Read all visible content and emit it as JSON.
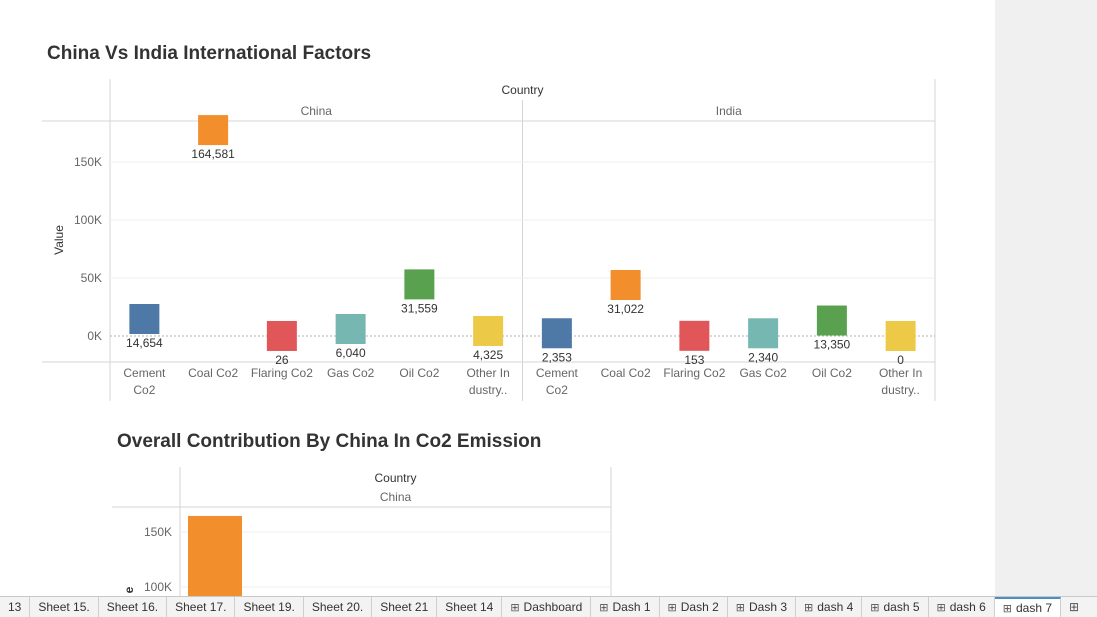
{
  "chart_data": [
    {
      "type": "bar",
      "title": "China Vs India International Factors",
      "header": "Country",
      "ylabel": "Value",
      "ylim": [
        -22000,
        184000
      ],
      "yticks": [
        0,
        50000,
        100000,
        150000
      ],
      "ytick_labels": [
        "0K",
        "50K",
        "100K",
        "150K"
      ],
      "panels": [
        {
          "name": "China",
          "categories": [
            "Cement Co2",
            "Coal Co2",
            "Flaring Co2",
            "Gas Co2",
            "Oil Co2",
            "Other Industry.."
          ],
          "category_labels": [
            [
              "Cement",
              "Co2"
            ],
            [
              "Coal Co2"
            ],
            [
              "Flaring Co2"
            ],
            [
              "Gas Co2"
            ],
            [
              "Oil Co2"
            ],
            [
              "Other In",
              "dustry.."
            ]
          ],
          "values": [
            14654,
            164581,
            26,
            6040,
            31559,
            4325
          ],
          "labels": [
            "14,654",
            "164,581",
            "26",
            "6,040",
            "31,559",
            "4,325"
          ]
        },
        {
          "name": "India",
          "categories": [
            "Cement Co2",
            "Coal Co2",
            "Flaring Co2",
            "Gas Co2",
            "Oil Co2",
            "Other Industry.."
          ],
          "category_labels": [
            [
              "Cement",
              "Co2"
            ],
            [
              "Coal Co2"
            ],
            [
              "Flaring Co2"
            ],
            [
              "Gas Co2"
            ],
            [
              "Oil Co2"
            ],
            [
              "Other In",
              "dustry.."
            ]
          ],
          "values": [
            2353,
            31022,
            153,
            2340,
            13350,
            0
          ],
          "labels": [
            "2,353",
            "31,022",
            "153",
            "2,340",
            "13,350",
            "0"
          ]
        }
      ],
      "colors": [
        "#4e79a7",
        "#f28e2b",
        "#e15759",
        "#76b7b2",
        "#59a14f",
        "#edc948"
      ]
    },
    {
      "type": "bar",
      "title": "Overall Contribution By China In Co2 Emission",
      "header": "Country",
      "panel": "China",
      "ylabel_visible": "e",
      "yticks": [
        100000,
        150000
      ],
      "ytick_labels": [
        "100K",
        "150K"
      ],
      "values": [
        164581
      ],
      "color": "#f28e2b"
    }
  ],
  "tabs": [
    {
      "label": "13",
      "icon": false,
      "active": false
    },
    {
      "label": "Sheet 15.",
      "icon": false,
      "active": false
    },
    {
      "label": "Sheet 16.",
      "icon": false,
      "active": false
    },
    {
      "label": "Sheet 17.",
      "icon": false,
      "active": false
    },
    {
      "label": "Sheet 19.",
      "icon": false,
      "active": false
    },
    {
      "label": "Sheet 20.",
      "icon": false,
      "active": false
    },
    {
      "label": "Sheet 21",
      "icon": false,
      "active": false
    },
    {
      "label": "Sheet 14",
      "icon": false,
      "active": false
    },
    {
      "label": "Dashboard",
      "icon": true,
      "active": false
    },
    {
      "label": "Dash 1",
      "icon": true,
      "active": false
    },
    {
      "label": "Dash 2",
      "icon": true,
      "active": false
    },
    {
      "label": "Dash 3",
      "icon": true,
      "active": false
    },
    {
      "label": "dash 4",
      "icon": true,
      "active": false
    },
    {
      "label": "dash 5",
      "icon": true,
      "active": false
    },
    {
      "label": "dash 6",
      "icon": true,
      "active": false
    },
    {
      "label": "dash 7",
      "icon": true,
      "active": true
    }
  ]
}
